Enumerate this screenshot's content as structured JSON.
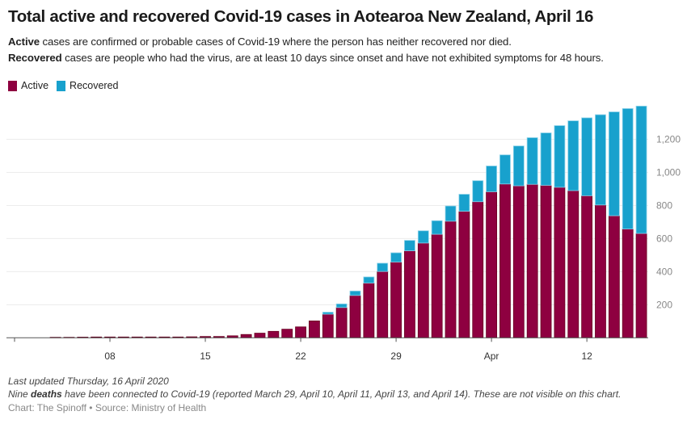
{
  "header": {
    "title": "Total active and recovered Covid-19 cases in Aotearoa New Zealand, April 16",
    "desc_active_bold": "Active",
    "desc_active_rest": " cases are confirmed or probable cases of Covid-19 where the person has neither recovered nor died.",
    "desc_recovered_bold": "Recovered",
    "desc_recovered_rest": " cases are people who had the virus, are at least 10 days since onset and have not exhibited symptoms for 48 hours."
  },
  "footer": {
    "updated": "Last updated Thursday, 16 April 2020",
    "deaths_pre": "Nine ",
    "deaths_bold": "deaths",
    "deaths_post": " have been connected to Covid-19 (reported March 29, April 10, April 11, April 13, and April 14). These are not visible on this chart.",
    "source": "Chart: The Spinoff • Source: Ministry of Health"
  },
  "colors": {
    "active": "#8e0040",
    "active_stroke": "#6a0020",
    "recovered": "#18a1cd"
  },
  "chart_data": {
    "type": "bar",
    "stacked": true,
    "title": "Total active and recovered Covid-19 cases in Aotearoa New Zealand, April 16",
    "legend": [
      "Active",
      "Recovered"
    ],
    "legend_position": "top-left",
    "x_start": "2020-03-01",
    "x_end": "2020-04-16",
    "x_ticks": [
      {
        "date": "2020-03-01",
        "label": ""
      },
      {
        "date": "2020-03-08",
        "label": "08"
      },
      {
        "date": "2020-03-15",
        "label": "15"
      },
      {
        "date": "2020-03-22",
        "label": "22"
      },
      {
        "date": "2020-03-29",
        "label": "29"
      },
      {
        "date": "2020-04-05",
        "label": "Apr"
      },
      {
        "date": "2020-04-12",
        "label": "12"
      }
    ],
    "y_ticks": [
      200,
      400,
      600,
      800,
      1000,
      1200
    ],
    "y_tick_labels": [
      "200",
      "400",
      "600",
      "800",
      "1,000",
      "1,200"
    ],
    "ylim": [
      0,
      1400
    ],
    "grid": true,
    "series": [
      {
        "name": "Active",
        "values": [
          0,
          0,
          0,
          3,
          3,
          4,
          5,
          5,
          5,
          5,
          5,
          5,
          5,
          6,
          8,
          8,
          12,
          20,
          28,
          39,
          52,
          66,
          102,
          143,
          183,
          256,
          331,
          401,
          458,
          526,
          573,
          626,
          705,
          765,
          823,
          883,
          930,
          919,
          928,
          922,
          910,
          890,
          859,
          803,
          738,
          658,
          631
        ]
      },
      {
        "name": "Recovered",
        "values": [
          0,
          0,
          0,
          0,
          0,
          0,
          0,
          0,
          0,
          0,
          0,
          0,
          0,
          0,
          0,
          0,
          0,
          0,
          0,
          0,
          0,
          0,
          0,
          12,
          22,
          27,
          37,
          50,
          56,
          63,
          74,
          82,
          92,
          103,
          127,
          156,
          176,
          241,
          282,
          317,
          373,
          422,
          471,
          546,
          628,
          728,
          770
        ]
      }
    ]
  }
}
